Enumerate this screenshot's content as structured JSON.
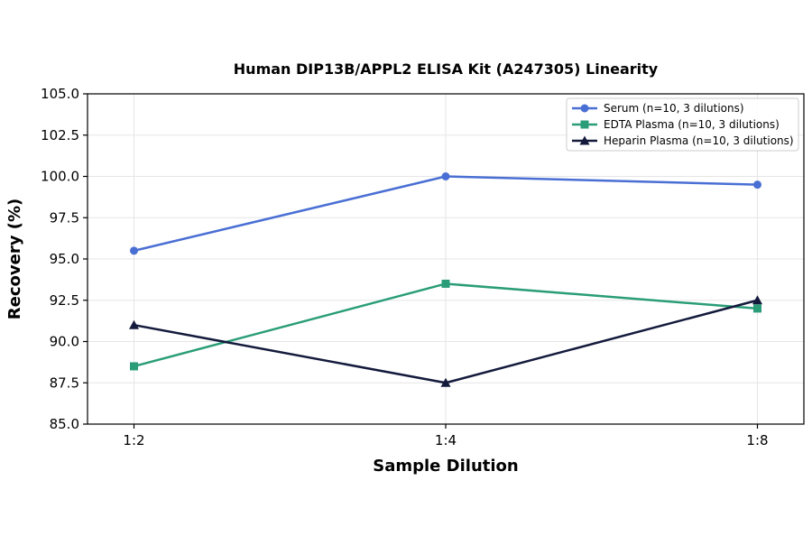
{
  "chart_data": {
    "type": "line",
    "title": "Human DIP13B/APPL2 ELISA Kit (A247305) Linearity",
    "xlabel": "Sample Dilution",
    "ylabel": "Recovery (%)",
    "categories": [
      "1:2",
      "1:4",
      "1:8"
    ],
    "ylim": [
      85.0,
      105.0
    ],
    "yticks": [
      "85.0",
      "87.5",
      "90.0",
      "92.5",
      "95.0",
      "97.5",
      "100.0",
      "102.5",
      "105.0"
    ],
    "grid": true,
    "legend_position": "top-right",
    "series": [
      {
        "name": "Serum (n=10, 3 dilutions)",
        "values": [
          95.5,
          100.0,
          99.5
        ],
        "color": "#4a6fd4",
        "marker": "circle"
      },
      {
        "name": "EDTA Plasma (n=10, 3 dilutions)",
        "values": [
          88.5,
          93.5,
          92.0
        ],
        "color": "#2a9d78",
        "marker": "square"
      },
      {
        "name": "Heparin Plasma (n=10, 3 dilutions)",
        "values": [
          91.0,
          87.5,
          92.5
        ],
        "color": "#141a3c",
        "marker": "triangle"
      }
    ]
  }
}
